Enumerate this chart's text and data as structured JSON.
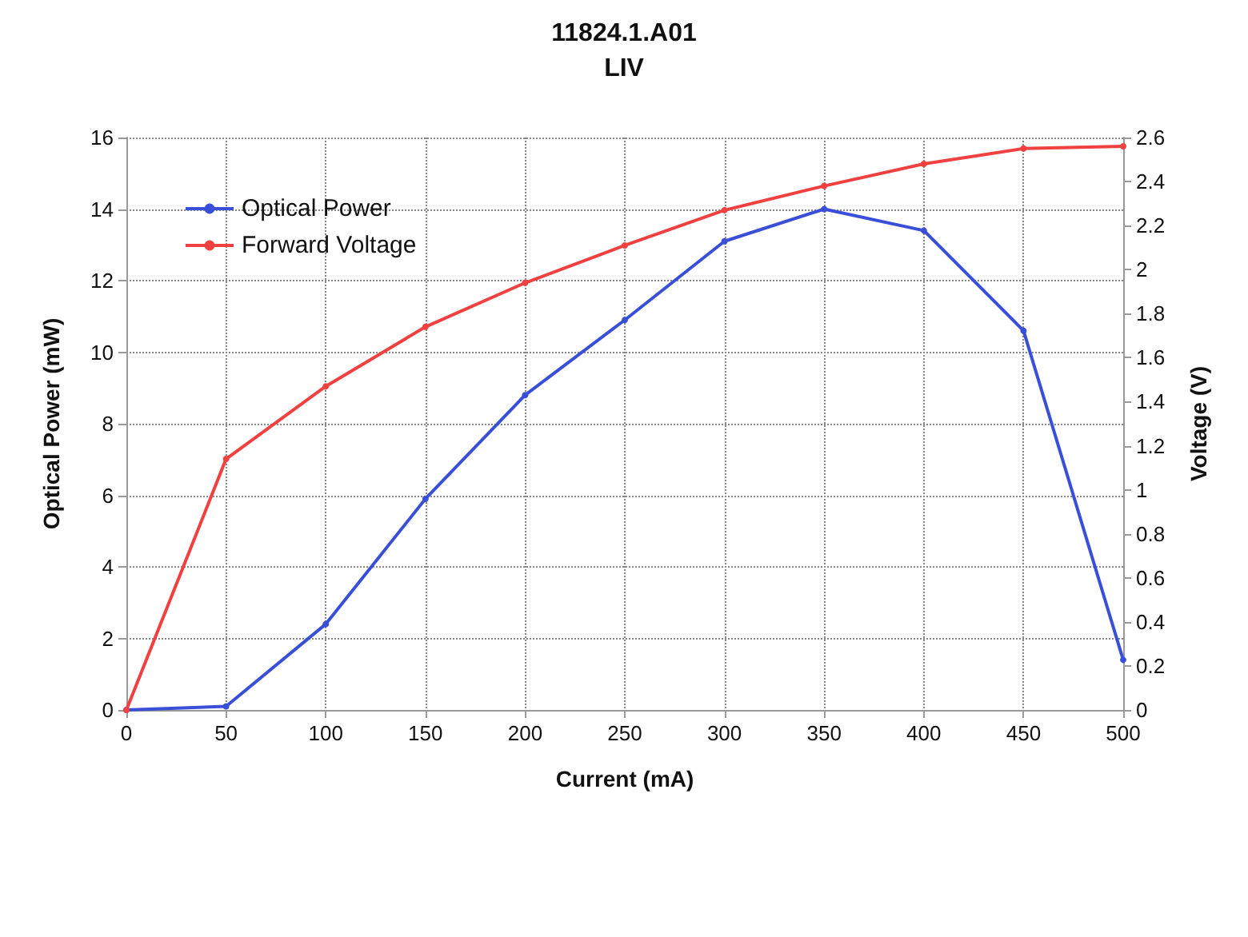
{
  "chart_data": {
    "type": "line",
    "title": "11824.1.A01",
    "subtitle": "LIV",
    "xlabel": "Current (mA)",
    "ylabel": "Optical Power (mW)",
    "y2label": "Voltage (V)",
    "x": [
      0,
      50,
      100,
      150,
      200,
      250,
      300,
      350,
      400,
      450,
      500
    ],
    "series": [
      {
        "name": "Optical Power",
        "color": "#3a4fd8",
        "values": [
          0,
          0.1,
          2.4,
          5.9,
          8.8,
          10.9,
          13.1,
          14.0,
          13.4,
          10.6,
          1.4
        ]
      },
      {
        "name": "Forward Voltage",
        "color": "#f04040",
        "axis": "y2",
        "values": [
          0,
          1.14,
          1.47,
          1.74,
          1.94,
          2.11,
          2.27,
          2.38,
          2.48,
          2.55,
          2.56
        ]
      }
    ],
    "xlim": [
      0,
      500
    ],
    "xticks": [
      0,
      50,
      100,
      150,
      200,
      250,
      300,
      350,
      400,
      450,
      500
    ],
    "ylim": [
      0,
      16
    ],
    "yticks": [
      0,
      2,
      4,
      6,
      8,
      10,
      12,
      14,
      16
    ],
    "y2lim": [
      0,
      2.6
    ],
    "y2ticks": [
      0,
      0.2,
      0.4,
      0.6,
      0.8,
      1,
      1.2,
      1.4,
      1.6,
      1.8,
      2,
      2.2,
      2.4,
      2.6
    ],
    "grid": true,
    "legend": "top left",
    "marker": "circle",
    "line_style": "solid"
  }
}
